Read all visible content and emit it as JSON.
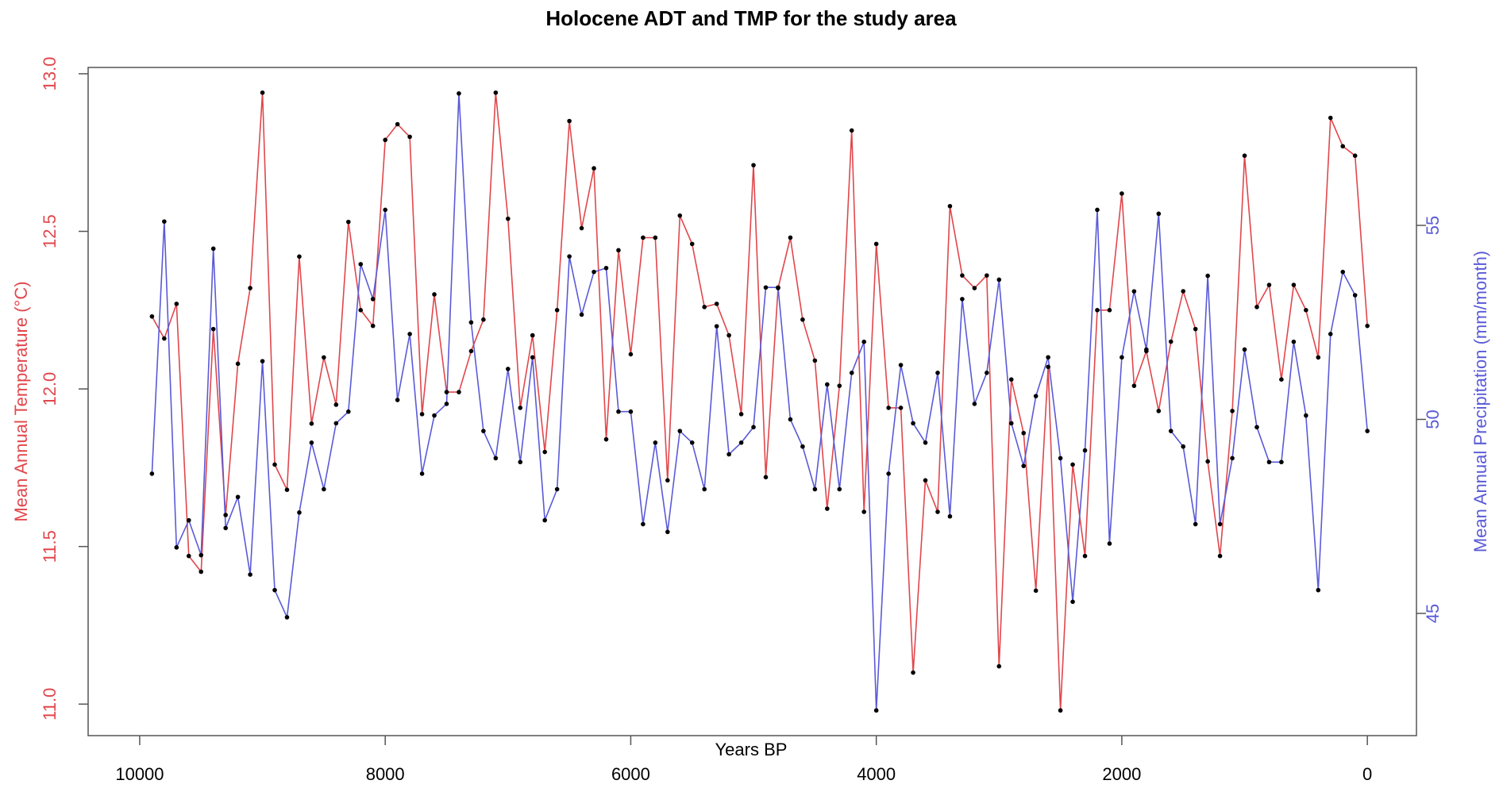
{
  "chart_data": {
    "type": "line",
    "title": "Holocene ADT and TMP for the study area",
    "xlabel": "Years BP",
    "ylabel": "Mean Annual Temperature (°C)",
    "y2label": "Mean Annual Precipitation (mm/month)",
    "x": [
      9900,
      9800,
      9700,
      9600,
      9500,
      9400,
      9300,
      9200,
      9100,
      9000,
      8900,
      8800,
      8700,
      8600,
      8500,
      8400,
      8300,
      8200,
      8100,
      8000,
      7900,
      7800,
      7700,
      7600,
      7500,
      7400,
      7300,
      7200,
      7100,
      7000,
      6900,
      6800,
      6700,
      6600,
      6500,
      6400,
      6300,
      6200,
      6100,
      6000,
      5900,
      5800,
      5700,
      5600,
      5500,
      5400,
      5300,
      5200,
      5100,
      5000,
      4900,
      4800,
      4700,
      4600,
      4500,
      4400,
      4300,
      4200,
      4100,
      4000,
      3900,
      3800,
      3700,
      3600,
      3500,
      3400,
      3300,
      3200,
      3100,
      3000,
      2900,
      2800,
      2700,
      2600,
      2500,
      2400,
      2300,
      2200,
      2100,
      2000,
      1900,
      1800,
      1700,
      1600,
      1500,
      1400,
      1300,
      1200,
      1100,
      1000,
      900,
      800,
      700,
      600,
      500,
      400,
      300,
      200,
      100,
      0
    ],
    "series": [
      {
        "name": "ADT",
        "color": "#e0474c",
        "axis": "y",
        "values": [
          12.23,
          12.16,
          12.27,
          11.47,
          11.42,
          12.19,
          11.6,
          12.08,
          12.32,
          12.94,
          11.76,
          11.68,
          12.42,
          11.89,
          12.1,
          11.95,
          12.53,
          12.25,
          12.2,
          12.79,
          12.84,
          12.8,
          11.92,
          12.3,
          11.99,
          11.99,
          12.12,
          12.22,
          12.94,
          12.54,
          11.94,
          12.17,
          11.8,
          12.25,
          12.85,
          12.51,
          12.7,
          11.84,
          12.44,
          12.11,
          12.48,
          12.48,
          11.71,
          12.55,
          12.46,
          12.26,
          12.27,
          12.17,
          11.92,
          12.71,
          11.72,
          12.32,
          12.48,
          12.22,
          12.09,
          11.62,
          12.01,
          12.82,
          11.61,
          12.46,
          11.94,
          11.94,
          11.1,
          11.71,
          11.61,
          12.58,
          12.36,
          12.32,
          12.36,
          11.12,
          12.03,
          11.86,
          11.36,
          12.07,
          10.98,
          11.76,
          11.47,
          12.25,
          12.25,
          12.62,
          12.01,
          12.12,
          11.93,
          12.15,
          12.31,
          12.19,
          11.77,
          11.47,
          11.93,
          12.74,
          12.26,
          12.33,
          12.03,
          12.33,
          12.25,
          12.1,
          12.86,
          12.77,
          12.74,
          12.2
        ]
      },
      {
        "name": "TMP",
        "color": "#5a5ad8",
        "axis": "y2",
        "values": [
          48.6,
          55.1,
          46.7,
          47.4,
          46.5,
          54.4,
          47.2,
          48.0,
          46.0,
          51.5,
          45.6,
          44.9,
          47.6,
          49.4,
          48.2,
          49.9,
          50.2,
          54.0,
          53.1,
          55.4,
          50.5,
          52.2,
          48.6,
          50.1,
          50.4,
          58.4,
          52.5,
          49.7,
          49.0,
          51.3,
          48.9,
          51.6,
          47.4,
          48.2,
          54.2,
          52.7,
          53.8,
          53.9,
          50.2,
          50.2,
          47.3,
          49.4,
          47.1,
          49.7,
          49.4,
          48.2,
          52.4,
          49.1,
          49.4,
          49.8,
          53.4,
          53.4,
          50.0,
          49.3,
          48.2,
          50.9,
          48.2,
          51.2,
          52.0,
          42.5,
          48.6,
          51.4,
          49.9,
          49.4,
          51.2,
          47.5,
          53.1,
          50.4,
          51.2,
          53.6,
          49.9,
          48.8,
          50.6,
          51.6,
          49.0,
          45.3,
          49.2,
          55.4,
          46.8,
          51.6,
          53.3,
          51.8,
          55.3,
          49.7,
          49.3,
          47.3,
          53.7,
          47.3,
          49.0,
          51.8,
          49.8,
          48.9,
          48.9,
          52.0,
          50.1,
          45.6,
          52.2,
          53.8,
          53.2,
          49.7
        ]
      }
    ],
    "xlim": [
      10420,
      -400
    ],
    "xticks": [
      10000,
      8000,
      6000,
      4000,
      2000,
      0
    ],
    "ylim": [
      10.9,
      13.02
    ],
    "yticks": [
      {
        "value": 11,
        "label": "11.0"
      },
      11.5,
      {
        "value": 12,
        "label": "12.0"
      },
      12.5,
      {
        "value": 13,
        "label": "13.0"
      }
    ],
    "y2lim": [
      41.85,
      59.07
    ],
    "y2ticks": [
      45,
      50,
      55
    ],
    "point_color": "#000000"
  }
}
